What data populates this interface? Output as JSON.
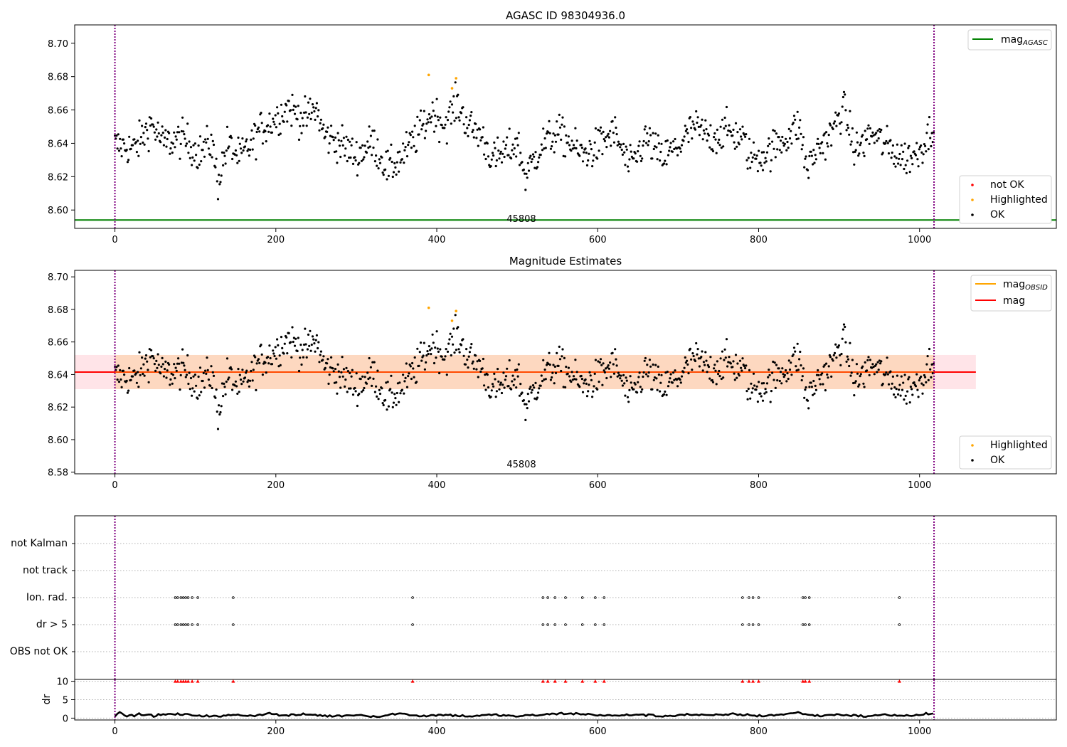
{
  "chart_data": [
    {
      "id": "agasc",
      "type": "scatter",
      "title": "AGASC ID 98304936.0",
      "obsid_label": "45808",
      "xlim": [
        -50,
        1170
      ],
      "ylim": [
        8.589,
        8.711
      ],
      "x_ticks": [
        0,
        200,
        400,
        600,
        800,
        1000
      ],
      "y_ticks": [
        8.6,
        8.62,
        8.64,
        8.66,
        8.68,
        8.7
      ],
      "y_tick_labels": [
        "8.60",
        "8.62",
        "8.64",
        "8.66",
        "8.68",
        "8.70"
      ],
      "vlines": [
        0,
        1018
      ],
      "hlines": [
        {
          "name": "mag_AGASC",
          "y": 8.594,
          "color": "#008000"
        }
      ],
      "legend_top": [
        {
          "label": "mag",
          "subscript": "AGASC",
          "color": "#008000"
        }
      ],
      "legend_bottom": [
        {
          "label": "not OK",
          "color": "#ff0000"
        },
        {
          "label": "Highlighted",
          "color": "#ffa500"
        },
        {
          "label": "OK",
          "color": "#000000"
        }
      ],
      "highlighted_points": [
        {
          "x": 390,
          "y": 8.681
        },
        {
          "x": 419,
          "y": 8.673
        },
        {
          "x": 424,
          "y": 8.679
        }
      ],
      "ok_trend": [
        [
          0,
          8.639
        ],
        [
          25,
          8.637
        ],
        [
          45,
          8.652
        ],
        [
          60,
          8.64
        ],
        [
          85,
          8.643
        ],
        [
          105,
          8.634
        ],
        [
          120,
          8.641
        ],
        [
          128,
          8.617
        ],
        [
          140,
          8.64
        ],
        [
          155,
          8.631
        ],
        [
          170,
          8.64
        ],
        [
          180,
          8.648
        ],
        [
          200,
          8.655
        ],
        [
          215,
          8.662
        ],
        [
          235,
          8.654
        ],
        [
          250,
          8.661
        ],
        [
          260,
          8.645
        ],
        [
          280,
          8.64
        ],
        [
          300,
          8.632
        ],
        [
          320,
          8.641
        ],
        [
          340,
          8.624
        ],
        [
          360,
          8.634
        ],
        [
          380,
          8.648
        ],
        [
          395,
          8.659
        ],
        [
          410,
          8.651
        ],
        [
          425,
          8.664
        ],
        [
          440,
          8.65
        ],
        [
          455,
          8.645
        ],
        [
          470,
          8.63
        ],
        [
          490,
          8.636
        ],
        [
          500,
          8.641
        ],
        [
          510,
          8.62
        ],
        [
          530,
          8.639
        ],
        [
          550,
          8.646
        ],
        [
          565,
          8.641
        ],
        [
          580,
          8.633
        ],
        [
          600,
          8.638
        ],
        [
          620,
          8.647
        ],
        [
          640,
          8.625
        ],
        [
          660,
          8.643
        ],
        [
          680,
          8.631
        ],
        [
          700,
          8.638
        ],
        [
          720,
          8.65
        ],
        [
          740,
          8.643
        ],
        [
          760,
          8.648
        ],
        [
          780,
          8.643
        ],
        [
          790,
          8.631
        ],
        [
          810,
          8.634
        ],
        [
          830,
          8.642
        ],
        [
          850,
          8.651
        ],
        [
          860,
          8.625
        ],
        [
          875,
          8.638
        ],
        [
          890,
          8.645
        ],
        [
          905,
          8.662
        ],
        [
          920,
          8.635
        ],
        [
          940,
          8.646
        ],
        [
          960,
          8.638
        ],
        [
          980,
          8.631
        ],
        [
          995,
          8.633
        ],
        [
          1005,
          8.64
        ],
        [
          1018,
          8.651
        ]
      ]
    },
    {
      "id": "mag-estimates",
      "type": "scatter",
      "title": "Magnitude Estimates",
      "obsid_label": "45808",
      "xlim": [
        -50,
        1170
      ],
      "ylim": [
        8.579,
        8.704
      ],
      "x_ticks": [
        0,
        200,
        400,
        600,
        800,
        1000
      ],
      "y_ticks": [
        8.58,
        8.6,
        8.62,
        8.64,
        8.66,
        8.68,
        8.7
      ],
      "y_tick_labels": [
        "8.58",
        "8.60",
        "8.62",
        "8.64",
        "8.66",
        "8.68",
        "8.70"
      ],
      "vlines": [
        0,
        1018
      ],
      "mag_line": {
        "name": "mag",
        "y": 8.6415,
        "x_range": [
          -50,
          1070
        ],
        "color": "#ff0000"
      },
      "mag_band": {
        "y_range": [
          8.631,
          8.652
        ],
        "x_range": [
          -50,
          1070
        ],
        "color": "#ffe4e8"
      },
      "mag_obsid_band": {
        "y_range": [
          8.631,
          8.652
        ],
        "x_range": [
          0,
          1018
        ],
        "color": "#fdd8c0"
      },
      "legend_top": [
        {
          "label": "mag",
          "subscript": "OBSID",
          "color": "#ffa500"
        },
        {
          "label": "mag",
          "subscript": "",
          "color": "#ff0000"
        }
      ],
      "legend_bottom": [
        {
          "label": "Highlighted",
          "color": "#ffa500"
        },
        {
          "label": "OK",
          "color": "#000000"
        }
      ]
    },
    {
      "id": "flags",
      "type": "scatter",
      "xlim": [
        -50,
        1170
      ],
      "x_ticks": [
        0,
        200,
        400,
        600,
        800,
        1000
      ],
      "vlines": [
        0,
        1018
      ],
      "flag_rows": [
        "not Kalman",
        "not track",
        "Ion. rad.",
        "dr > 5",
        "OBS not OK"
      ],
      "flag_points": {
        "Ion. rad.": [
          75,
          78,
          82,
          85,
          88,
          91,
          96,
          103,
          147,
          370,
          532,
          538,
          547,
          560,
          581,
          597,
          608,
          780,
          788,
          793,
          800,
          855,
          858,
          863,
          975
        ],
        "dr > 5": [
          75,
          78,
          82,
          85,
          88,
          91,
          96,
          103,
          147,
          370,
          532,
          538,
          547,
          560,
          581,
          597,
          608,
          780,
          788,
          793,
          800,
          855,
          858,
          863,
          975
        ]
      }
    },
    {
      "id": "dr",
      "type": "line",
      "ylabel": "dr",
      "xlim": [
        -50,
        1170
      ],
      "ylim": [
        -0.5,
        10.5
      ],
      "x_ticks": [
        0,
        200,
        400,
        600,
        800,
        1000
      ],
      "x_tick_labels": [
        "0",
        "200",
        "400",
        "600",
        "800",
        "1000"
      ],
      "y_ticks": [
        0,
        5,
        10
      ],
      "y_tick_labels": [
        "0",
        "5",
        "10"
      ],
      "vlines": [
        0,
        1018
      ],
      "clipped_markers_y": 10,
      "clipped_marker_x": [
        75,
        78,
        82,
        85,
        88,
        91,
        96,
        103,
        147,
        370,
        532,
        538,
        547,
        560,
        581,
        597,
        608,
        780,
        788,
        793,
        800,
        855,
        858,
        863,
        975
      ],
      "dr_trend": [
        [
          0,
          0.8
        ],
        [
          6,
          1.6
        ],
        [
          12,
          0.5
        ],
        [
          30,
          1.0
        ],
        [
          50,
          0.7
        ],
        [
          70,
          1.1
        ],
        [
          100,
          0.8
        ],
        [
          130,
          0.4
        ],
        [
          150,
          1.0
        ],
        [
          170,
          0.6
        ],
        [
          190,
          1.3
        ],
        [
          210,
          0.7
        ],
        [
          240,
          1.0
        ],
        [
          270,
          0.5
        ],
        [
          300,
          0.9
        ],
        [
          330,
          0.4
        ],
        [
          350,
          1.3
        ],
        [
          380,
          0.6
        ],
        [
          410,
          0.9
        ],
        [
          440,
          0.5
        ],
        [
          470,
          0.9
        ],
        [
          500,
          0.5
        ],
        [
          530,
          0.9
        ],
        [
          560,
          1.3
        ],
        [
          590,
          1.0
        ],
        [
          620,
          0.6
        ],
        [
          650,
          1.0
        ],
        [
          680,
          0.5
        ],
        [
          710,
          1.0
        ],
        [
          740,
          0.7
        ],
        [
          770,
          1.1
        ],
        [
          800,
          0.6
        ],
        [
          830,
          1.0
        ],
        [
          850,
          1.5
        ],
        [
          870,
          0.6
        ],
        [
          900,
          1.0
        ],
        [
          930,
          0.5
        ],
        [
          960,
          0.9
        ],
        [
          990,
          0.6
        ],
        [
          1010,
          1.2
        ],
        [
          1018,
          1.2
        ]
      ]
    }
  ]
}
